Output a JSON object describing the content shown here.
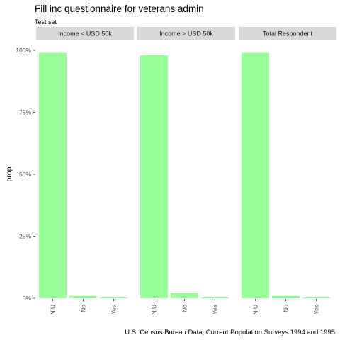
{
  "title": "Fill inc questionnaire for veterans admin",
  "subtitle": "Test set",
  "caption": "U.S. Census Bureau Data, Current Population Surveys 1994 and 1995",
  "chart_data": {
    "type": "bar",
    "facets": [
      {
        "label": "Income < USD 50k",
        "categories": [
          "NIU",
          "No",
          "Yes"
        ],
        "values": [
          0.99,
          0.009,
          0.003
        ]
      },
      {
        "label": "Income > USD 50k",
        "categories": [
          "NIU",
          "No",
          "Yes"
        ],
        "values": [
          0.98,
          0.02,
          0.003
        ]
      },
      {
        "label": "Total Respondent",
        "categories": [
          "NIU",
          "No",
          "Yes"
        ],
        "values": [
          0.99,
          0.009,
          0.003
        ]
      }
    ],
    "ylabel": "prop",
    "xlabel": "",
    "ylim": [
      0,
      1
    ],
    "yticks": [
      0,
      0.25,
      0.5,
      0.75,
      1
    ],
    "ytick_labels": [
      "0%",
      "25%",
      "50%",
      "75%",
      "100%"
    ],
    "grid": false,
    "legend": "none",
    "bar_color": "#99ff99",
    "strip_color": "#d9d9d9"
  }
}
